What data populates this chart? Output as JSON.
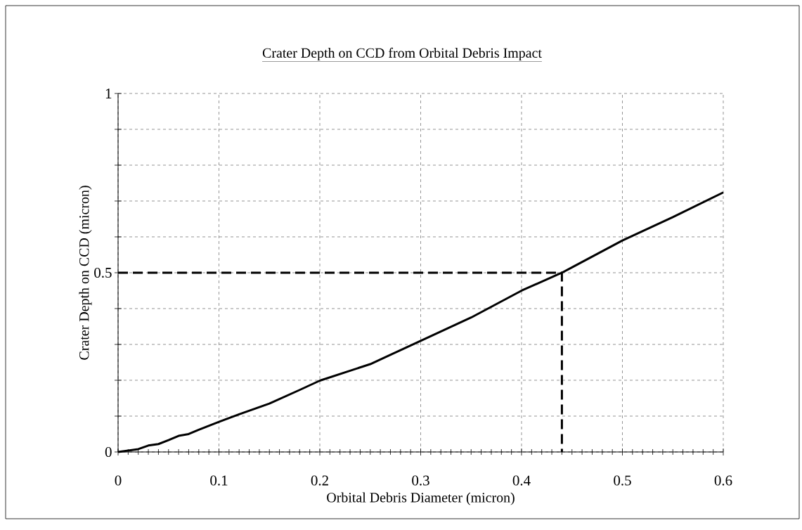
{
  "chart_data": {
    "type": "line",
    "title": "Crater Depth on CCD from Orbital Debris Impact",
    "xlabel": "Orbital Debris Diameter (micron)",
    "ylabel": "Crater Depth on CCD (micron)",
    "series": [
      {
        "x": [
          0,
          0.02,
          0.03,
          0.04,
          0.05,
          0.06,
          0.07,
          0.08,
          0.1,
          0.12,
          0.15,
          0.18,
          0.2,
          0.25,
          0.3,
          0.35,
          0.4,
          0.44,
          0.45,
          0.5,
          0.55,
          0.6
        ],
        "values": [
          0,
          0.008,
          0.018,
          0.022,
          0.033,
          0.045,
          0.05,
          0.062,
          0.084,
          0.105,
          0.135,
          0.173,
          0.199,
          0.245,
          0.31,
          0.375,
          0.45,
          0.5,
          0.515,
          0.59,
          0.655,
          0.724
        ],
        "color": "#000000",
        "line_style": "solid"
      },
      {
        "x": [
          0,
          0.44,
          0.44
        ],
        "values": [
          0.5,
          0.5,
          0
        ],
        "color": "#000000",
        "line_style": "dashed"
      }
    ],
    "xlim": [
      0,
      0.6
    ],
    "ylim": [
      0,
      1
    ],
    "xticks": [
      0,
      0.1,
      0.2,
      0.3,
      0.4,
      0.5,
      0.6
    ],
    "yticks": [
      0,
      {
        "value": 0.1,
        "label": null
      },
      {
        "value": 0.2,
        "label": null
      },
      {
        "value": 0.3,
        "label": null
      },
      {
        "value": 0.4,
        "label": null
      },
      0.5,
      {
        "value": 0.6,
        "label": null
      },
      {
        "value": 0.7,
        "label": null
      },
      {
        "value": 0.8,
        "label": null
      },
      {
        "value": 0.9,
        "label": null
      },
      1
    ],
    "grid": true,
    "marker": "none"
  }
}
